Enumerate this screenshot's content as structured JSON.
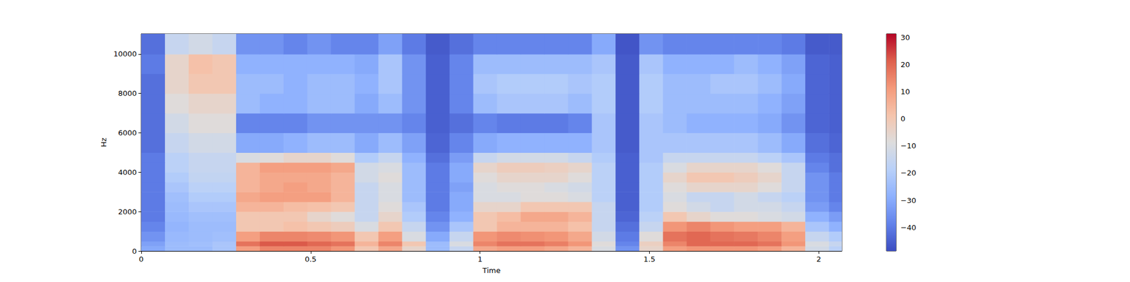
{
  "chart_data": {
    "type": "heatmap",
    "x_label": "Time",
    "y_label": "Hz",
    "x": [
      0,
      0.07,
      0.14,
      0.21,
      0.28,
      0.35,
      0.42,
      0.49,
      0.56,
      0.63,
      0.7,
      0.77,
      0.84,
      0.91,
      0.98,
      1.05,
      1.12,
      1.19,
      1.26,
      1.33,
      1.4,
      1.47,
      1.54,
      1.61,
      1.68,
      1.75,
      1.82,
      1.89,
      1.96,
      2.03
    ],
    "y": [
      0,
      250,
      500,
      1000,
      1500,
      2000,
      2500,
      3000,
      3500,
      4000,
      4500,
      5000,
      6000,
      7000,
      8000,
      9000,
      10000
    ],
    "cells": [
      [
        -30,
        -25,
        -25,
        -22,
        10,
        15,
        15,
        15,
        12,
        0,
        8,
        -5,
        -25,
        -15,
        8,
        10,
        10,
        8,
        5,
        -10,
        -35,
        -5,
        10,
        12,
        12,
        12,
        10,
        5,
        -12,
        -18
      ],
      [
        -32,
        -25,
        -24,
        -22,
        18,
        22,
        22,
        20,
        18,
        5,
        15,
        0,
        -25,
        -10,
        15,
        18,
        18,
        16,
        12,
        -8,
        -38,
        -3,
        15,
        20,
        20,
        20,
        18,
        12,
        -10,
        -15
      ],
      [
        -35,
        -26,
        -25,
        -24,
        10,
        15,
        15,
        14,
        12,
        0,
        10,
        -10,
        -30,
        -15,
        12,
        14,
        13,
        12,
        8,
        -12,
        -40,
        -8,
        18,
        20,
        18,
        17,
        15,
        10,
        -15,
        -20
      ],
      [
        -38,
        -27,
        -25,
        -25,
        0,
        0,
        2,
        0,
        -2,
        -10,
        0,
        -15,
        -35,
        -22,
        0,
        5,
        5,
        5,
        2,
        -15,
        -42,
        -15,
        12,
        15,
        12,
        10,
        10,
        5,
        -22,
        -28
      ],
      [
        -40,
        -26,
        -24,
        -24,
        0,
        0,
        0,
        -5,
        -8,
        -15,
        -5,
        -20,
        -38,
        -28,
        0,
        3,
        8,
        8,
        5,
        -15,
        -44,
        -18,
        0,
        -5,
        -8,
        -8,
        -10,
        -12,
        -28,
        -33
      ],
      [
        -40,
        -25,
        -22,
        -22,
        5,
        5,
        3,
        2,
        0,
        -15,
        -8,
        -22,
        -40,
        -30,
        -5,
        -5,
        0,
        0,
        0,
        -15,
        -45,
        -20,
        -8,
        -12,
        -15,
        -12,
        -12,
        -15,
        -33,
        -38
      ],
      [
        -40,
        -24,
        -20,
        -20,
        8,
        10,
        10,
        10,
        5,
        -15,
        -10,
        -25,
        -40,
        -30,
        -10,
        -10,
        -8,
        -8,
        -10,
        -18,
        -45,
        -20,
        -10,
        -15,
        -15,
        -12,
        -15,
        -18,
        -35,
        -40
      ],
      [
        -40,
        -22,
        -18,
        -18,
        5,
        8,
        10,
        8,
        5,
        -15,
        -10,
        -25,
        -40,
        -32,
        -10,
        -8,
        -8,
        -10,
        -12,
        -18,
        -45,
        -20,
        -8,
        -5,
        -5,
        -5,
        -8,
        -15,
        -35,
        -40
      ],
      [
        -40,
        -20,
        -16,
        -16,
        5,
        8,
        8,
        8,
        5,
        -12,
        -8,
        -25,
        -40,
        -30,
        -8,
        -5,
        -5,
        -5,
        -8,
        -18,
        -45,
        -20,
        -5,
        0,
        0,
        -2,
        -5,
        -15,
        -35,
        -40
      ],
      [
        -40,
        -18,
        -15,
        -15,
        5,
        10,
        10,
        10,
        8,
        -12,
        -10,
        -25,
        -40,
        -30,
        -5,
        -2,
        -2,
        -3,
        -5,
        -18,
        -45,
        -20,
        -10,
        -5,
        -5,
        -5,
        -8,
        -15,
        -38,
        -42
      ],
      [
        -40,
        -18,
        -15,
        -15,
        -10,
        -8,
        -5,
        -5,
        -8,
        -20,
        -15,
        -28,
        -42,
        -33,
        -15,
        -12,
        -12,
        -12,
        -15,
        -20,
        -45,
        -22,
        -15,
        -15,
        -15,
        -15,
        -18,
        -22,
        -40,
        -42
      ],
      [
        -42,
        -15,
        -12,
        -12,
        -30,
        -30,
        -28,
        -25,
        -25,
        -30,
        -25,
        -32,
        -44,
        -38,
        -30,
        -28,
        -28,
        -28,
        -28,
        -22,
        -46,
        -22,
        -22,
        -22,
        -22,
        -22,
        -25,
        -30,
        -42,
        -44
      ],
      [
        -42,
        -12,
        -8,
        -8,
        -38,
        -38,
        -38,
        -35,
        -35,
        -35,
        -35,
        -38,
        -45,
        -42,
        -38,
        -40,
        -40,
        -40,
        -38,
        -22,
        -46,
        -22,
        -25,
        -28,
        -28,
        -28,
        -30,
        -35,
        -44,
        -45
      ],
      [
        -42,
        -8,
        -5,
        -5,
        -25,
        -28,
        -28,
        -25,
        -25,
        -30,
        -25,
        -35,
        -45,
        -38,
        -25,
        -22,
        -22,
        -22,
        -25,
        -20,
        -46,
        -20,
        -25,
        -25,
        -25,
        -25,
        -28,
        -32,
        -44,
        -45
      ],
      [
        -42,
        -5,
        0,
        0,
        -25,
        -25,
        -28,
        -25,
        -25,
        -28,
        -22,
        -35,
        -45,
        -38,
        -22,
        -20,
        -20,
        -20,
        -22,
        -20,
        -46,
        -20,
        -25,
        -25,
        -22,
        -22,
        -25,
        -30,
        -44,
        -45
      ],
      [
        -40,
        -5,
        2,
        0,
        -28,
        -28,
        -28,
        -28,
        -28,
        -30,
        -22,
        -35,
        -45,
        -38,
        -25,
        -25,
        -25,
        -25,
        -25,
        -22,
        -46,
        -22,
        -28,
        -28,
        -28,
        -25,
        -28,
        -32,
        -44,
        -45
      ],
      [
        -42,
        -15,
        -12,
        -15,
        -35,
        -35,
        -38,
        -35,
        -38,
        -38,
        -32,
        -40,
        -46,
        -42,
        -38,
        -38,
        -38,
        -38,
        -38,
        -30,
        -47,
        -35,
        -38,
        -38,
        -38,
        -38,
        -38,
        -40,
        -46,
        -46
      ]
    ],
    "xlim": [
      0,
      2.068
    ],
    "xticks": [
      0,
      0.5,
      1,
      1.5,
      2
    ],
    "ylim": [
      0,
      11025
    ],
    "yticks": [
      0,
      2000,
      4000,
      6000,
      8000,
      10000
    ],
    "colorbar": {
      "range": [
        -48.7,
        31.3
      ],
      "ticks": [
        {
          "value": -40,
          "label": "−40"
        },
        {
          "value": -30,
          "label": "−30"
        },
        {
          "value": -20,
          "label": "−20"
        },
        {
          "value": -10,
          "label": "−10"
        },
        0,
        10,
        20,
        30
      ]
    }
  }
}
